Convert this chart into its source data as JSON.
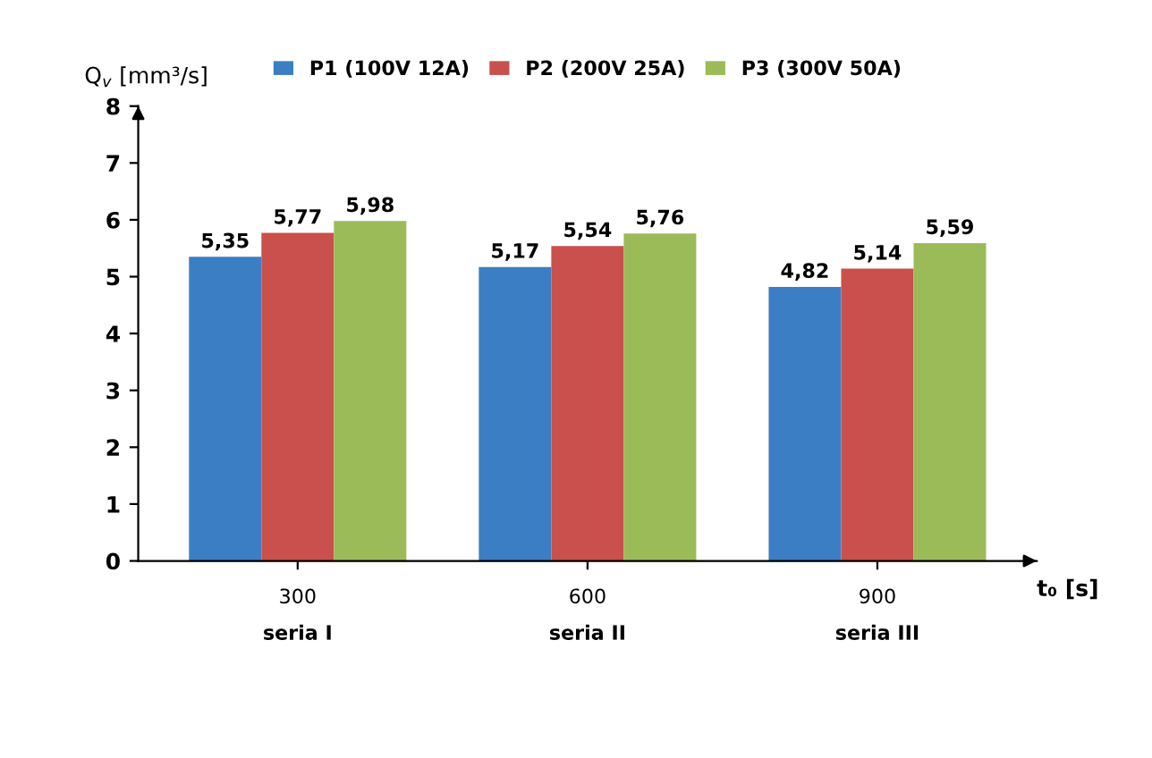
{
  "chart_data": {
    "type": "bar",
    "categories": [
      "300\nseria I",
      "600\nseria II",
      "900\nseria III"
    ],
    "xlabel": "t₀ [s]",
    "ylabel": "Q$_{v}$ [mm³/s]",
    "series": [
      {
        "name": "P1 (100V 12A)",
        "color": "#3c7ec3",
        "values": [
          5.35,
          5.17,
          4.82
        ],
        "value_labels": [
          "5,35",
          "5,17",
          "4,82"
        ]
      },
      {
        "name": "P2 (200V 25A)",
        "color": "#c9504c",
        "values": [
          5.77,
          5.54,
          5.14
        ],
        "value_labels": [
          "5,77",
          "5,54",
          "5,14"
        ]
      },
      {
        "name": "P3 (300V 50A)",
        "color": "#9bbb59",
        "values": [
          5.98,
          5.76,
          5.59
        ],
        "value_labels": [
          "5,98",
          "5,76",
          "5,59"
        ]
      }
    ],
    "ylim": [
      0,
      8
    ],
    "yticks": [
      0,
      1,
      2,
      3,
      4,
      5,
      6,
      7,
      8
    ],
    "grid": false,
    "legend": "top"
  }
}
